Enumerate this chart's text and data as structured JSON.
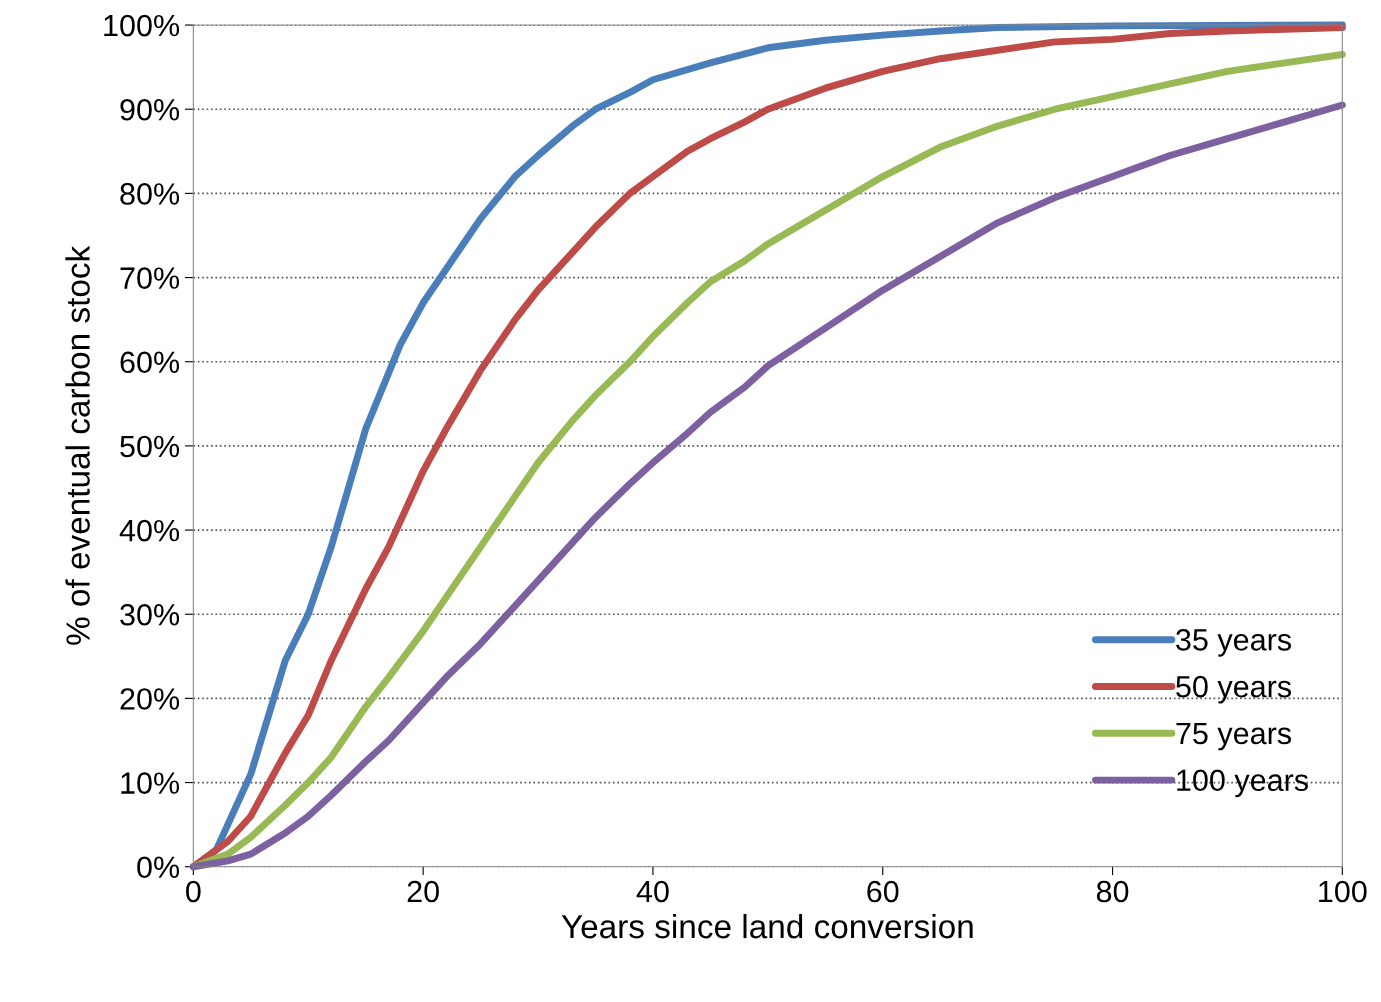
{
  "chart_data": {
    "type": "line",
    "xlabel": "Years since land conversion",
    "ylabel": "% of eventual carbon stock",
    "xlim": [
      0,
      100
    ],
    "xticks": [
      0,
      20,
      40,
      60,
      80,
      100
    ],
    "ylim": [
      0,
      100
    ],
    "yticks": [
      {
        "value": 0,
        "label": "0%"
      },
      {
        "value": 10,
        "label": "10%"
      },
      {
        "value": 20,
        "label": "20%"
      },
      {
        "value": 30,
        "label": "30%"
      },
      {
        "value": 40,
        "label": "40%"
      },
      {
        "value": 50,
        "label": "50%"
      },
      {
        "value": 60,
        "label": "60%"
      },
      {
        "value": 70,
        "label": "70%"
      },
      {
        "value": 80,
        "label": "80%"
      },
      {
        "value": 90,
        "label": "90%"
      },
      {
        "value": 100,
        "label": "100%"
      }
    ],
    "grid": "y",
    "legend": "bottom right",
    "marker": "none",
    "line_style": "solid",
    "series": [
      {
        "name": "35 years",
        "color": "#4a7ebb",
        "x": [
          0,
          2,
          3,
          5,
          8,
          10,
          12,
          15,
          18,
          20,
          22,
          25,
          28,
          30,
          33,
          35,
          38,
          40,
          45,
          50,
          55,
          60,
          65,
          70,
          80,
          100
        ],
        "values": [
          0,
          2,
          5,
          11,
          24.5,
          30,
          38,
          52,
          62,
          67,
          71,
          77,
          82,
          84.5,
          88,
          90,
          92,
          93.5,
          95.5,
          97.3,
          98.2,
          98.8,
          99.3,
          99.7,
          99.9,
          100
        ]
      },
      {
        "name": "50 years",
        "color": "#be4b48",
        "x": [
          0,
          3,
          5,
          8,
          10,
          12,
          15,
          17,
          20,
          22,
          25,
          28,
          30,
          33,
          35,
          38,
          40,
          43,
          45,
          48,
          50,
          55,
          60,
          65,
          70,
          75,
          80,
          85,
          90,
          95,
          100
        ],
        "values": [
          0,
          3,
          6,
          13.5,
          18,
          24.5,
          33,
          38,
          47,
          52,
          59,
          65,
          68.5,
          73,
          76,
          80,
          82,
          85,
          86.5,
          88.5,
          90,
          92.5,
          94.5,
          96,
          97,
          98,
          98.3,
          99,
          99.3,
          99.5,
          99.7
        ]
      },
      {
        "name": "75 years",
        "color": "#98b954",
        "x": [
          0,
          3,
          5,
          8,
          10,
          12,
          15,
          17,
          20,
          22,
          25,
          28,
          30,
          33,
          35,
          38,
          40,
          43,
          45,
          48,
          50,
          55,
          60,
          65,
          70,
          75,
          80,
          85,
          90,
          95,
          100
        ],
        "values": [
          0,
          1.5,
          3.5,
          7.3,
          10,
          13,
          19,
          22.5,
          28,
          32,
          38,
          44,
          48,
          53,
          56,
          60,
          63,
          67,
          69.5,
          72,
          74,
          78,
          82,
          85.5,
          88,
          90,
          91.5,
          93,
          94.5,
          95.5,
          96.5
        ]
      },
      {
        "name": "100 years",
        "color": "#7d60a0",
        "x": [
          0,
          3,
          5,
          8,
          10,
          12,
          15,
          17,
          20,
          22,
          25,
          28,
          30,
          33,
          35,
          38,
          40,
          43,
          45,
          48,
          50,
          55,
          60,
          65,
          70,
          75,
          80,
          85,
          90,
          95,
          100
        ],
        "values": [
          0,
          0.7,
          1.5,
          4,
          6,
          8.5,
          12.5,
          15,
          19.5,
          22.5,
          26.5,
          31,
          34,
          38.5,
          41.5,
          45.5,
          48,
          51.5,
          54,
          57,
          59.5,
          64,
          68.5,
          72.5,
          76.5,
          79.5,
          82,
          84.5,
          86.5,
          88.5,
          90.5
        ]
      }
    ]
  }
}
